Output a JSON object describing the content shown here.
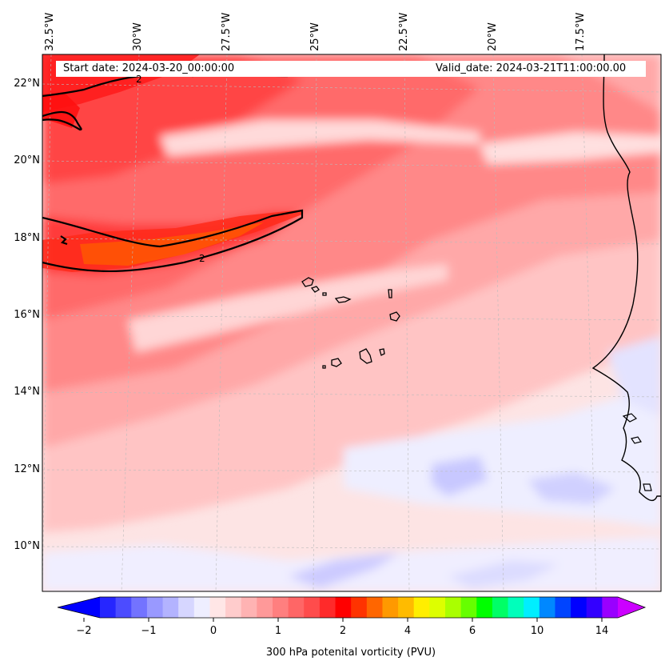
{
  "map": {
    "start_label": "Start date: 2024-03-20_00:00:00",
    "valid_label": "Valid_date: 2024-03-21T11:00:00.00",
    "lon_labels": [
      "32.5°W",
      "30°W",
      "27.5°W",
      "25°W",
      "22.5°W",
      "20°W",
      "17.5°W"
    ],
    "lat_labels": [
      "22°N",
      "20°N",
      "18°N",
      "16°N",
      "14°N",
      "12°N",
      "10°N"
    ],
    "contour_labels": [
      "2",
      "2"
    ],
    "extent": {
      "lon_min": -32.5,
      "lon_max": -15.3,
      "lat_min": 8.9,
      "lat_max": 22.8
    },
    "gridlines": true,
    "land_color": "#fbe3e3"
  },
  "colorbar": {
    "title": "300 hPa potenital vorticity (PVU)",
    "tick_labels": [
      "−2",
      "−1",
      "0",
      "1",
      "2",
      "4",
      "6",
      "10",
      "14"
    ],
    "colors": [
      "#0000ff",
      "#2626ff",
      "#4c4cff",
      "#7373ff",
      "#9999ff",
      "#b3b3ff",
      "#d6d6ff",
      "#eeeeff",
      "#ffe6e6",
      "#ffcccc",
      "#ffb3b3",
      "#ff9999",
      "#ff7f7f",
      "#ff6666",
      "#ff4c4c",
      "#ff2a2a",
      "#ff0000",
      "#ff3300",
      "#ff6600",
      "#ff9900",
      "#ffbb00",
      "#ffee00",
      "#ddff00",
      "#aaff00",
      "#66ff00",
      "#00ff00",
      "#00ff66",
      "#00ffbb",
      "#00eeff",
      "#0088ff",
      "#0044ff",
      "#0000ff",
      "#3300ff",
      "#9900ff",
      "#cc00ff"
    ]
  }
}
